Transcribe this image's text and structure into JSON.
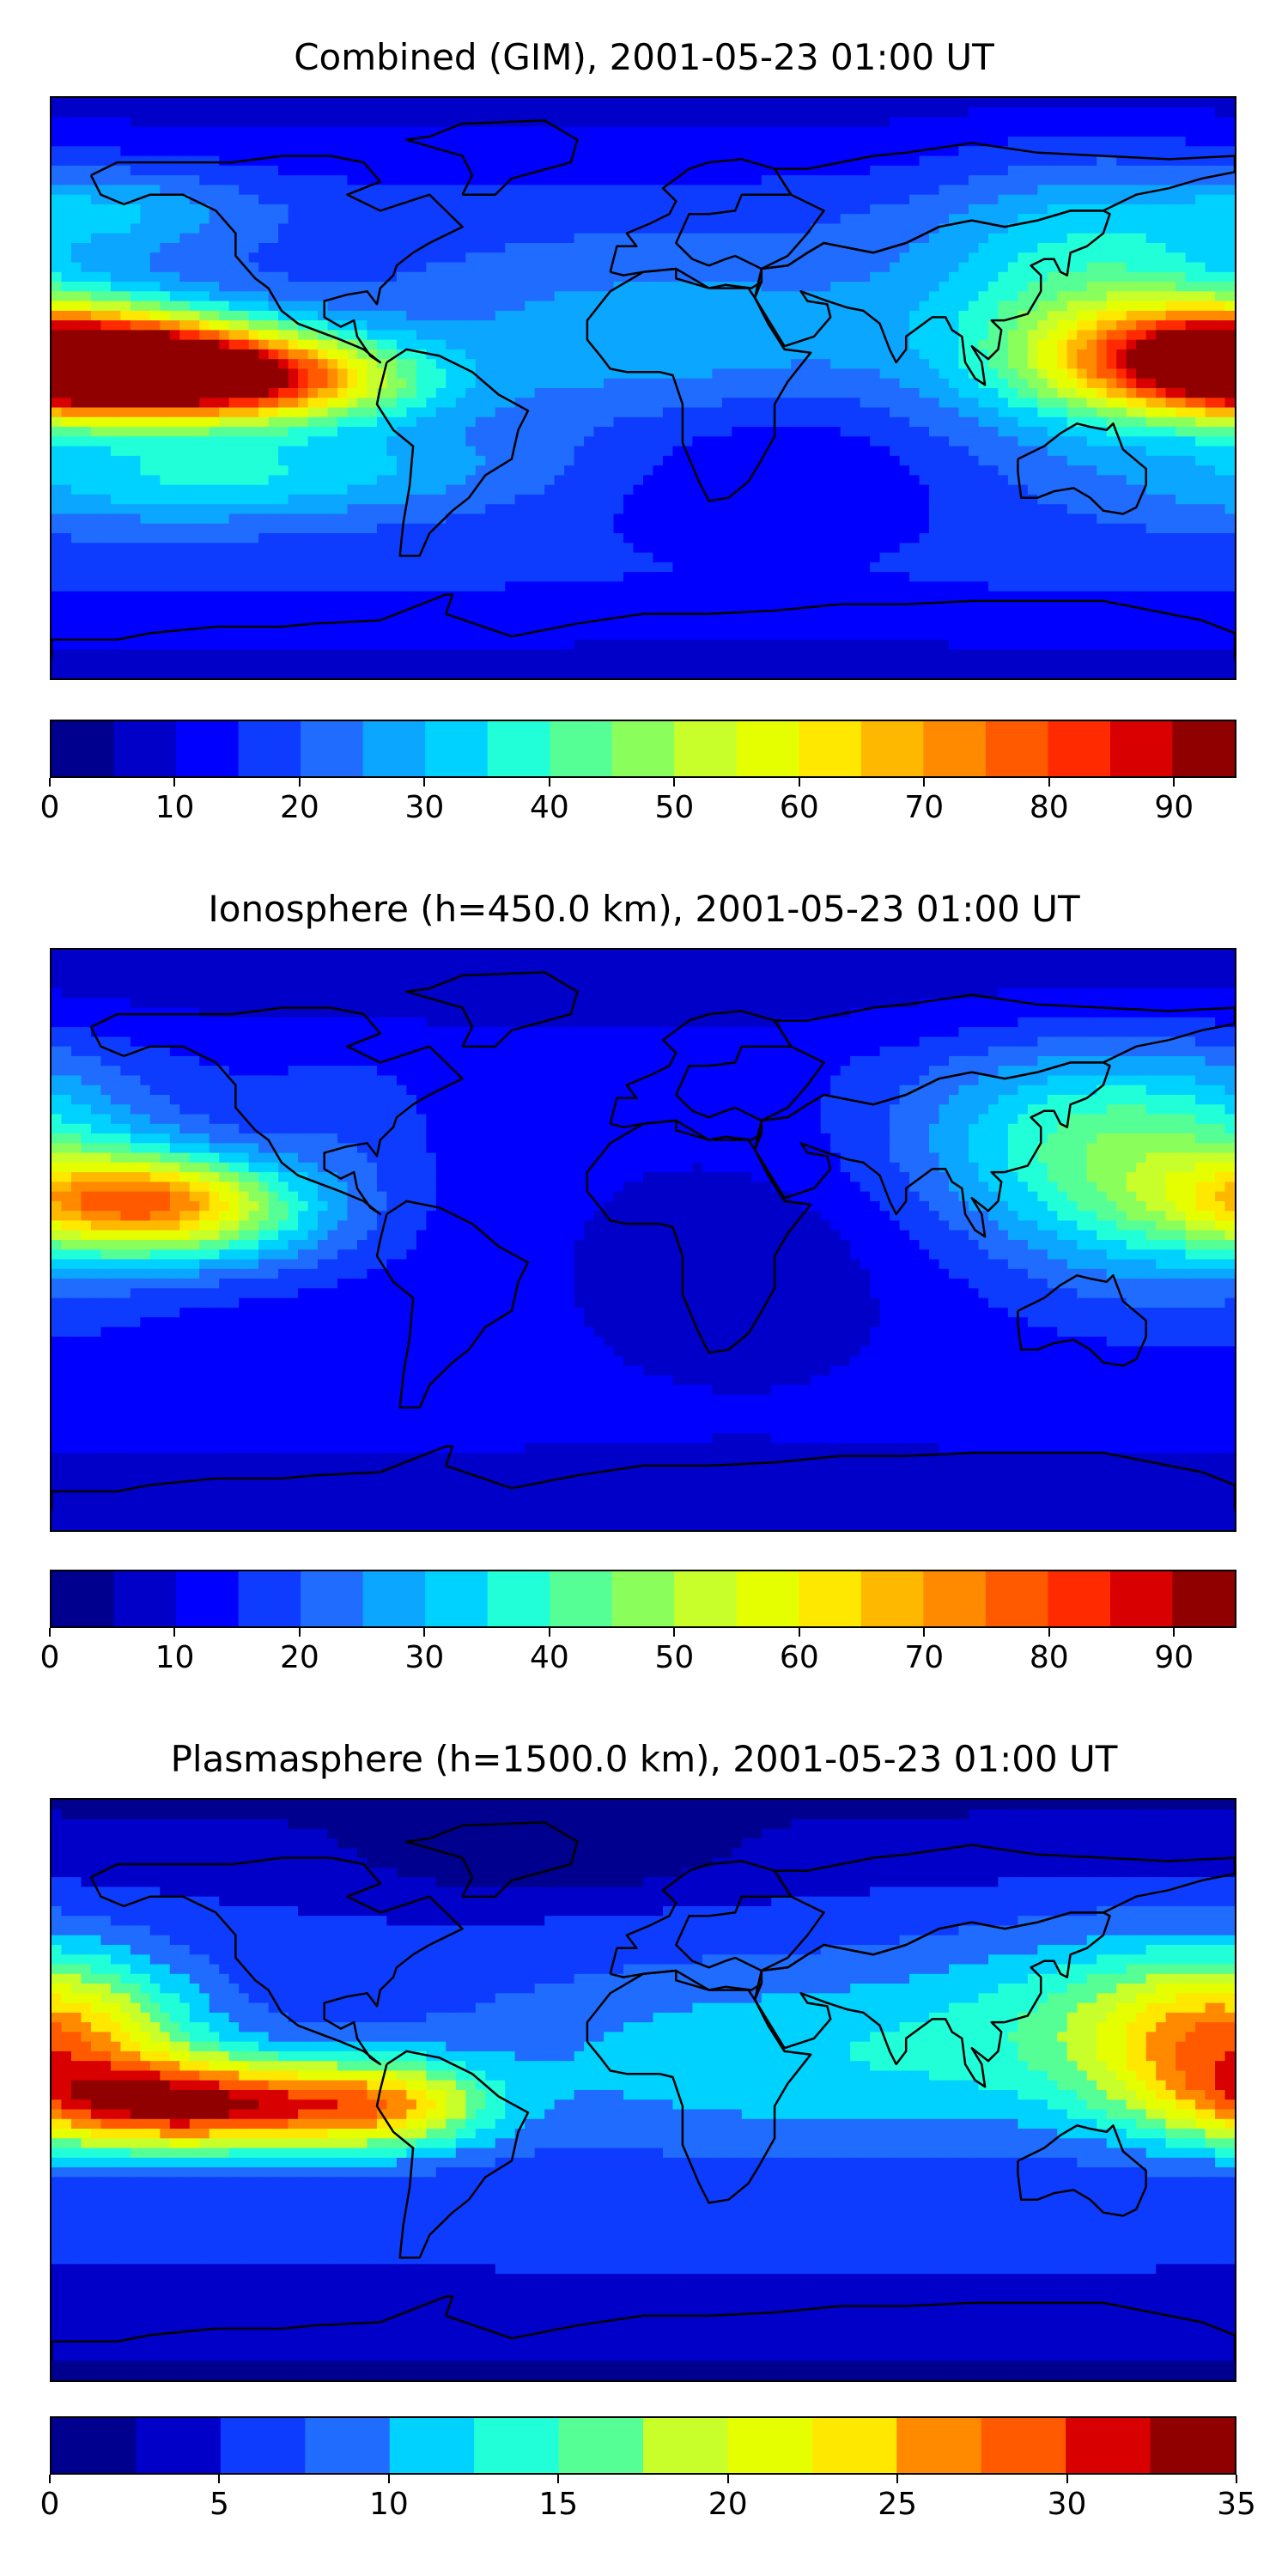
{
  "colormap": [
    "#00008f",
    "#0000c8",
    "#0000ff",
    "#0d3cff",
    "#1f6cff",
    "#0ba6ff",
    "#00d2ff",
    "#21ffd8",
    "#55ff96",
    "#8aff5c",
    "#c8ff2b",
    "#e6ff00",
    "#ffe800",
    "#ffb800",
    "#ff8a00",
    "#ff5a00",
    "#ff2a00",
    "#d80000",
    "#900000"
  ],
  "panels": [
    {
      "title": "Combined (GIM), 2001-05-23 01:00 UT",
      "colorbar": {
        "min": 0,
        "max": 95,
        "step": 5,
        "ticks": [
          "0",
          "10",
          "20",
          "30",
          "40",
          "50",
          "60",
          "70",
          "80",
          "90"
        ],
        "tick_values": [
          0,
          10,
          20,
          30,
          40,
          50,
          60,
          70,
          80,
          90
        ]
      },
      "field": {
        "base": 17,
        "features": [
          {
            "lon": -145,
            "lat": 5,
            "amp": 75,
            "sx": 40,
            "sy": 10
          },
          {
            "lon": -110,
            "lat": 0,
            "amp": 20,
            "sx": 30,
            "sy": 8
          },
          {
            "lon": 180,
            "lat": 10,
            "amp": 60,
            "sx": 35,
            "sy": 12
          },
          {
            "lon": 135,
            "lat": 25,
            "amp": 22,
            "sx": 35,
            "sy": 30
          },
          {
            "lon": -100,
            "lat": -25,
            "amp": 12,
            "sx": 50,
            "sy": 10
          },
          {
            "lon": 10,
            "lat": 15,
            "amp": 12,
            "sx": 60,
            "sy": 20
          },
          {
            "lon": -160,
            "lat": 55,
            "amp": 12,
            "sx": 30,
            "sy": 10
          },
          {
            "lon": 40,
            "lat": -25,
            "amp": -8,
            "sx": 40,
            "sy": 20
          },
          {
            "lon": -150,
            "lat": -30,
            "amp": 10,
            "sx": 40,
            "sy": 10
          }
        ]
      }
    },
    {
      "title": "Ionosphere  (h=450.0 km), 2001-05-23 01:00 UT",
      "colorbar": {
        "min": 0,
        "max": 95,
        "step": 5,
        "ticks": [
          "0",
          "10",
          "20",
          "30",
          "40",
          "50",
          "60",
          "70",
          "80",
          "90"
        ],
        "tick_values": [
          0,
          10,
          20,
          30,
          40,
          50,
          60,
          70,
          80,
          90
        ]
      },
      "field": {
        "base": 12,
        "features": [
          {
            "lon": -150,
            "lat": 12,
            "amp": 50,
            "sx": 30,
            "sy": 10
          },
          {
            "lon": -130,
            "lat": 0,
            "amp": 10,
            "sx": 30,
            "sy": 10
          },
          {
            "lon": 160,
            "lat": 20,
            "amp": 28,
            "sx": 40,
            "sy": 25
          },
          {
            "lon": 120,
            "lat": 35,
            "amp": 12,
            "sx": 40,
            "sy": 20
          },
          {
            "lon": -90,
            "lat": 30,
            "amp": 6,
            "sx": 20,
            "sy": 20
          },
          {
            "lon": 30,
            "lat": -10,
            "amp": -6,
            "sx": 35,
            "sy": 25
          }
        ]
      }
    },
    {
      "title": "Plasmasphere (h=1500.0 km), 2001-05-23 01:00 UT",
      "colorbar": {
        "min": 0,
        "max": 35,
        "step": 2.5,
        "ticks": [
          "0",
          "5",
          "10",
          "15",
          "20",
          "25",
          "30",
          "35"
        ],
        "tick_values": [
          0,
          5,
          10,
          15,
          20,
          25,
          30,
          35
        ]
      },
      "field": {
        "base": 5,
        "features": [
          {
            "lon": -130,
            "lat": -5,
            "amp": 26,
            "sx": 40,
            "sy": 10
          },
          {
            "lon": -75,
            "lat": -5,
            "amp": 10,
            "sx": 20,
            "sy": 10
          },
          {
            "lon": 180,
            "lat": 15,
            "amp": 18,
            "sx": 30,
            "sy": 18
          },
          {
            "lon": 50,
            "lat": 10,
            "amp": 7,
            "sx": 80,
            "sy": 22
          },
          {
            "lon": 140,
            "lat": 25,
            "amp": 5,
            "sx": 40,
            "sy": 20
          },
          {
            "lon": -30,
            "lat": 70,
            "amp": -3,
            "sx": 40,
            "sy": 10
          }
        ]
      }
    }
  ]
}
